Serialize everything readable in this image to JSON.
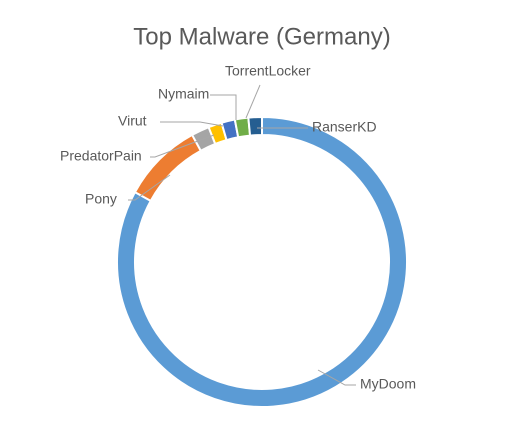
{
  "chart_data": {
    "type": "doughnut",
    "title": "Top Malware (Germany)",
    "categories": [
      "MyDoom",
      "Pony",
      "PredatorPain",
      "Virut",
      "Nymaim",
      "TorrentLocker",
      "RanserKD"
    ],
    "values": [
      83,
      9,
      2,
      1.5,
      1.5,
      1.5,
      1.5
    ],
    "colors": [
      "#5b9bd5",
      "#ed7d31",
      "#a5a5a5",
      "#ffc000",
      "#4472c4",
      "#70ad47",
      "#255e91"
    ]
  }
}
